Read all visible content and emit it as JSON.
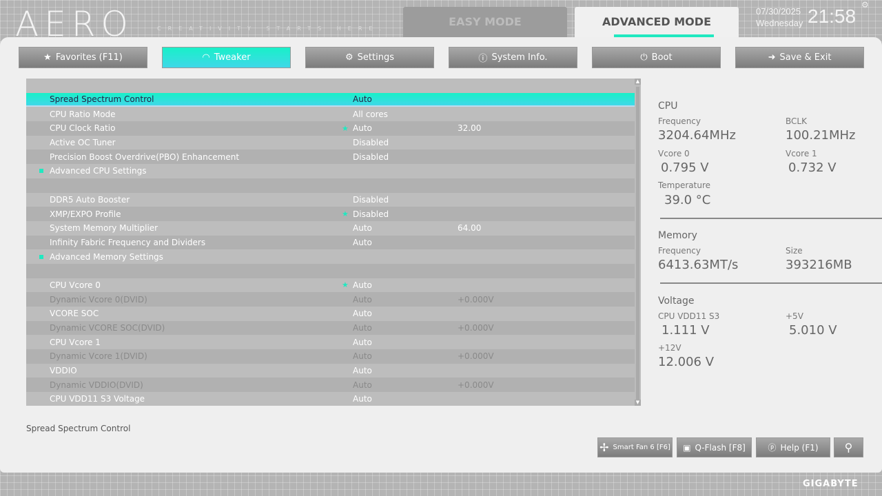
{
  "header": {
    "logo": "AERO",
    "slogan": "CREATIVITY STARTS HERE.",
    "easy_mode": "EASY MODE",
    "advanced_mode": "ADVANCED MODE",
    "date": "07/30/2025",
    "day": "Wednesday",
    "time": "21:58"
  },
  "tabs": [
    {
      "label": "Favorites (F11)",
      "icon": "folder-star-icon"
    },
    {
      "label": "Tweaker",
      "icon": "speedometer-icon"
    },
    {
      "label": "Settings",
      "icon": "gear-icon"
    },
    {
      "label": "System Info.",
      "icon": "info-icon"
    },
    {
      "label": "Boot",
      "icon": "power-icon"
    },
    {
      "label": "Save & Exit",
      "icon": "exit-icon"
    }
  ],
  "rows": [
    {
      "name": "",
      "value": "",
      "extra": ""
    },
    {
      "name": "Spread Spectrum Control",
      "value": "Auto",
      "extra": ""
    },
    {
      "name": "CPU Ratio Mode",
      "value": "All cores",
      "extra": ""
    },
    {
      "name": "CPU Clock Ratio",
      "value": "Auto",
      "extra": "32.00"
    },
    {
      "name": "Active OC Tuner",
      "value": "Disabled",
      "extra": ""
    },
    {
      "name": "Precision Boost Overdrive(PBO) Enhancement",
      "value": "Disabled",
      "extra": ""
    },
    {
      "name": "Advanced CPU Settings",
      "value": "",
      "extra": ""
    },
    {
      "name": "",
      "value": "",
      "extra": ""
    },
    {
      "name": "DDR5 Auto Booster",
      "value": "Disabled",
      "extra": ""
    },
    {
      "name": "XMP/EXPO Profile",
      "value": "Disabled",
      "extra": ""
    },
    {
      "name": "System Memory Multiplier",
      "value": "Auto",
      "extra": "64.00"
    },
    {
      "name": "Infinity Fabric Frequency and Dividers",
      "value": "Auto",
      "extra": ""
    },
    {
      "name": "Advanced Memory Settings",
      "value": "",
      "extra": ""
    },
    {
      "name": "",
      "value": "",
      "extra": ""
    },
    {
      "name": "CPU Vcore 0",
      "value": "Auto",
      "extra": ""
    },
    {
      "name": "Dynamic Vcore 0(DVID)",
      "value": "Auto",
      "extra": "+0.000V"
    },
    {
      "name": "VCORE SOC",
      "value": "Auto",
      "extra": ""
    },
    {
      "name": "Dynamic VCORE SOC(DVID)",
      "value": "Auto",
      "extra": "+0.000V"
    },
    {
      "name": "CPU Vcore 1",
      "value": "Auto",
      "extra": ""
    },
    {
      "name": "Dynamic Vcore 1(DVID)",
      "value": "Auto",
      "extra": "+0.000V"
    },
    {
      "name": "VDDIO",
      "value": "Auto",
      "extra": ""
    },
    {
      "name": "Dynamic VDDIO(DVID)",
      "value": "Auto",
      "extra": "+0.000V"
    },
    {
      "name": "CPU VDD11 S3 Voltage",
      "value": "Auto",
      "extra": ""
    }
  ],
  "info": {
    "cpu": {
      "title": "CPU",
      "freq_label": "Frequency",
      "freq": "3204.64MHz",
      "bclk_label": "BCLK",
      "bclk": "100.21MHz",
      "vcore0_label": "Vcore 0",
      "vcore0": "0.795 V",
      "vcore1_label": "Vcore 1",
      "vcore1": "0.732 V",
      "temp_label": "Temperature",
      "temp": "39.0 °C"
    },
    "memory": {
      "title": "Memory",
      "freq_label": "Frequency",
      "freq": "6413.63MT/s",
      "size_label": "Size",
      "size": "393216MB"
    },
    "voltage": {
      "title": "Voltage",
      "vdd_label": "CPU VDD11 S3",
      "vdd": "1.111 V",
      "v5_label": "+5V",
      "v5": "5.010 V",
      "v12_label": "+12V",
      "v12": "12.006 V"
    }
  },
  "help_text": "Spread Spectrum Control",
  "bottom": {
    "smartfan": "Smart Fan 6 [F6]",
    "qflash": "Q-Flash [F8]",
    "help": "Help (F1)"
  },
  "brand": "GIGABYTE",
  "accent": "#20e8c0"
}
